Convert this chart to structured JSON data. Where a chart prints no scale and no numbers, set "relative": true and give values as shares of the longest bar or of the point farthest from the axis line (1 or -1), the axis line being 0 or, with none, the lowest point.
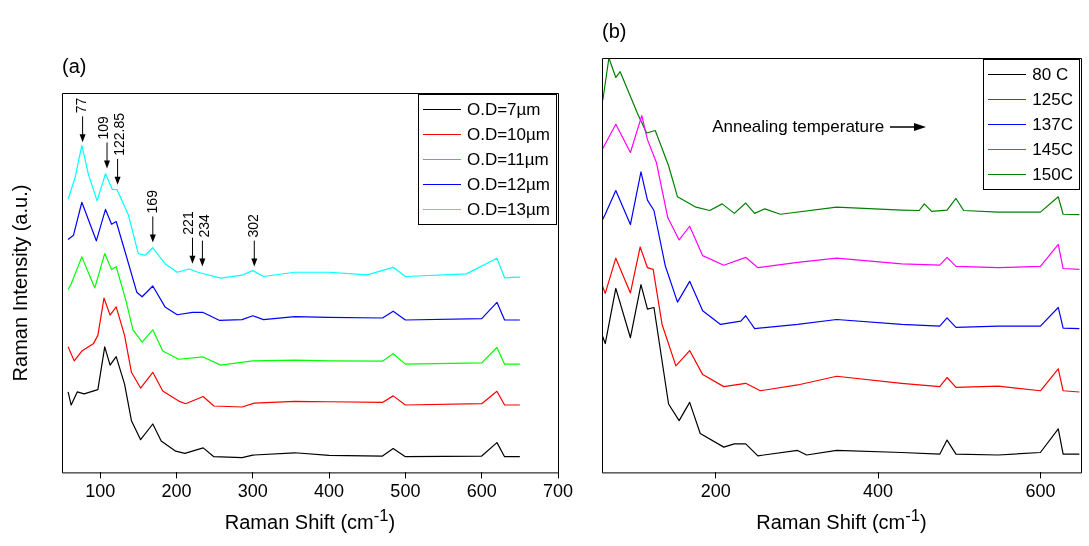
{
  "chart_data": [
    {
      "type": "line",
      "title": "(a)",
      "xlabel": "Raman Shift (cm$^{-1}$)",
      "ylabel": "Raman Intensity (a.u.)",
      "relative": true,
      "xlim": [
        50,
        700
      ],
      "xticks": [
        100,
        200,
        300,
        400,
        500,
        600,
        700
      ],
      "legend": "top right",
      "series": [
        {
          "name": "O.D=7µm",
          "color": "#000000",
          "x": [
            58,
            62,
            70,
            79,
            97,
            106,
            113,
            121,
            132,
            141,
            153,
            169,
            180,
            199,
            211,
            235,
            249,
            286,
            300,
            355,
            400,
            470,
            484,
            500,
            600,
            620,
            630,
            650
          ],
          "values": [
            0.246,
            0.206,
            0.246,
            0.24,
            0.253,
            0.384,
            0.328,
            0.354,
            0.27,
            0.158,
            0.1,
            0.148,
            0.096,
            0.065,
            0.058,
            0.075,
            0.048,
            0.045,
            0.053,
            0.06,
            0.052,
            0.05,
            0.073,
            0.048,
            0.05,
            0.091,
            0.048,
            0.048
          ]
        },
        {
          "name": "O.D=10µm",
          "color": "#ff0000",
          "x": [
            58,
            66,
            76,
            91,
            97,
            105,
            113,
            121,
            132,
            141,
            153,
            169,
            182,
            203,
            212,
            235,
            249,
            286,
            302,
            355,
            400,
            470,
            484,
            500,
            600,
            620,
            630,
            650
          ],
          "values": [
            0.384,
            0.341,
            0.371,
            0.393,
            0.419,
            0.533,
            0.481,
            0.506,
            0.419,
            0.306,
            0.258,
            0.306,
            0.249,
            0.218,
            0.21,
            0.232,
            0.203,
            0.2,
            0.212,
            0.217,
            0.216,
            0.214,
            0.234,
            0.206,
            0.21,
            0.248,
            0.206,
            0.206
          ]
        },
        {
          "name": "O.D=11µm",
          "color": "#00ff00",
          "x": [
            58,
            62,
            76,
            93,
            106,
            115,
            121,
            134,
            143,
            155,
            169,
            182,
            203,
            235,
            258,
            300,
            355,
            400,
            470,
            484,
            500,
            600,
            620,
            630,
            650
          ],
          "values": [
            0.559,
            0.576,
            0.659,
            0.564,
            0.669,
            0.62,
            0.629,
            0.524,
            0.436,
            0.398,
            0.436,
            0.371,
            0.346,
            0.353,
            0.328,
            0.341,
            0.343,
            0.341,
            0.34,
            0.363,
            0.331,
            0.335,
            0.382,
            0.331,
            0.331
          ]
        },
        {
          "name": "O.D=12µm",
          "color": "#0000ff",
          "x": [
            58,
            65,
            76,
            95,
            107,
            115,
            121,
            134,
            148,
            155,
            169,
            185,
            201,
            221,
            235,
            256,
            286,
            300,
            314,
            355,
            400,
            470,
            484,
            500,
            600,
            620,
            630,
            650
          ],
          "values": [
            0.712,
            0.725,
            0.826,
            0.708,
            0.804,
            0.759,
            0.767,
            0.664,
            0.551,
            0.537,
            0.57,
            0.506,
            0.482,
            0.489,
            0.489,
            0.465,
            0.467,
            0.479,
            0.467,
            0.476,
            0.474,
            0.472,
            0.493,
            0.466,
            0.47,
            0.52,
            0.466,
            0.466
          ]
        },
        {
          "name": "O.D=13µm",
          "color": "#00ffff",
          "x": [
            58,
            67,
            76,
            85,
            96,
            107,
            116,
            122,
            137,
            150,
            159,
            169,
            185,
            201,
            217,
            228,
            258,
            286,
            300,
            314,
            355,
            400,
            450,
            484,
            500,
            580,
            620,
            630,
            650
          ],
          "values": [
            0.835,
            0.9,
            1.0,
            0.908,
            0.83,
            0.913,
            0.865,
            0.865,
            0.787,
            0.669,
            0.664,
            0.687,
            0.638,
            0.612,
            0.622,
            0.612,
            0.594,
            0.603,
            0.617,
            0.599,
            0.612,
            0.612,
            0.604,
            0.627,
            0.599,
            0.607,
            0.655,
            0.595,
            0.597
          ]
        }
      ],
      "annotations": [
        {
          "text": "77",
          "x": 77,
          "y": 1.0
        },
        {
          "text": "109",
          "x": 109,
          "y": 0.92
        },
        {
          "text": "122.85",
          "x": 122.85,
          "y": 0.87
        },
        {
          "text": "169",
          "x": 169,
          "y": 0.694
        },
        {
          "text": "221",
          "x": 221,
          "y": 0.629
        },
        {
          "text": "234",
          "x": 234,
          "y": 0.62
        },
        {
          "text": "302",
          "x": 302,
          "y": 0.62
        }
      ]
    },
    {
      "type": "line",
      "title": "(b)",
      "xlabel": "Raman Shift (cm$^{-1}$)",
      "relative": true,
      "xlim": [
        60,
        650
      ],
      "xticks": [
        200,
        400,
        600
      ],
      "legend": "top right",
      "series": [
        {
          "name": "80 C",
          "color": "#000000",
          "x": [
            60,
            64,
            77,
            95,
            108,
            116,
            124,
            142,
            155,
            168,
            181,
            210,
            223,
            237,
            252,
            301,
            312,
            349,
            429,
            476,
            485,
            496,
            548,
            600,
            622,
            628,
            648
          ],
          "values": [
            0.332,
            0.311,
            0.444,
            0.325,
            0.453,
            0.394,
            0.398,
            0.165,
            0.125,
            0.169,
            0.094,
            0.061,
            0.069,
            0.069,
            0.04,
            0.053,
            0.042,
            0.053,
            0.048,
            0.044,
            0.078,
            0.044,
            0.042,
            0.048,
            0.105,
            0.044,
            0.044
          ]
        },
        {
          "name": "125C",
          "color": "#ff0000",
          "x": [
            60,
            64,
            77,
            95,
            107,
            116,
            123,
            134,
            151,
            168,
            184,
            210,
            237,
            255,
            301,
            349,
            429,
            476,
            485,
            496,
            548,
            600,
            622,
            628,
            648
          ],
          "values": [
            0.453,
            0.432,
            0.517,
            0.433,
            0.544,
            0.494,
            0.49,
            0.357,
            0.257,
            0.294,
            0.236,
            0.207,
            0.215,
            0.197,
            0.211,
            0.232,
            0.215,
            0.207,
            0.229,
            0.205,
            0.208,
            0.197,
            0.25,
            0.197,
            0.194
          ]
        },
        {
          "name": "137C",
          "color": "#0000ff",
          "x": [
            60,
            64,
            77,
            95,
            108,
            116,
            124,
            138,
            153,
            168,
            184,
            206,
            231,
            237,
            248,
            301,
            349,
            429,
            476,
            485,
            496,
            548,
            600,
            622,
            628,
            648
          ],
          "values": [
            0.607,
            0.623,
            0.68,
            0.598,
            0.725,
            0.657,
            0.632,
            0.498,
            0.411,
            0.461,
            0.39,
            0.357,
            0.365,
            0.378,
            0.347,
            0.357,
            0.369,
            0.357,
            0.353,
            0.373,
            0.35,
            0.353,
            0.353,
            0.398,
            0.348,
            0.347
          ]
        },
        {
          "name": "145C",
          "color": "#ff00ff",
          "x": [
            60,
            77,
            95,
            109,
            116,
            127,
            141,
            155,
            168,
            184,
            210,
            237,
            252,
            301,
            349,
            429,
            476,
            485,
            496,
            548,
            600,
            622,
            628,
            648
          ],
          "values": [
            0.778,
            0.84,
            0.772,
            0.861,
            0.803,
            0.748,
            0.615,
            0.561,
            0.594,
            0.523,
            0.5,
            0.519,
            0.494,
            0.507,
            0.517,
            0.503,
            0.5,
            0.519,
            0.497,
            0.494,
            0.497,
            0.55,
            0.492,
            0.49
          ]
        },
        {
          "name": "150C",
          "color": "#008000",
          "x": [
            61,
            68.5,
            77,
            82.4,
            91.7,
            104,
            115,
            125.6,
            142,
            153,
            175.8,
            192.7,
            208,
            223,
            237,
            248,
            260.5,
            279.7,
            349,
            429,
            450.7,
            457,
            466,
            485,
            496,
            505.5,
            548,
            600,
            622,
            628,
            648
          ],
          "values": [
            0.898,
            1.0,
            0.953,
            0.967,
            0.923,
            0.865,
            0.819,
            0.825,
            0.74,
            0.665,
            0.64,
            0.632,
            0.648,
            0.625,
            0.65,
            0.625,
            0.636,
            0.623,
            0.64,
            0.633,
            0.632,
            0.648,
            0.63,
            0.633,
            0.661,
            0.632,
            0.628,
            0.628,
            0.665,
            0.623,
            0.622
          ]
        }
      ],
      "annotations": [
        "Annealing temperature"
      ]
    }
  ]
}
